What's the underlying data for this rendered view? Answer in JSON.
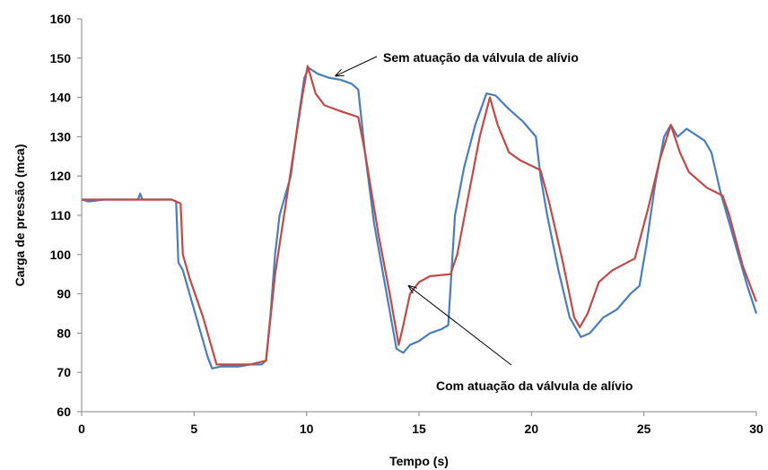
{
  "chart_data": {
    "type": "line",
    "xlabel": "Tempo (s)",
    "ylabel": "Carga de pressão (mca)",
    "xlim": [
      0,
      30
    ],
    "ylim": [
      60,
      160
    ],
    "xticks": [
      0,
      5,
      10,
      15,
      20,
      25,
      30
    ],
    "yticks": [
      60,
      70,
      80,
      90,
      100,
      110,
      120,
      130,
      140,
      150,
      160
    ],
    "grid": false,
    "series": [
      {
        "color": "#4a7ebb",
        "points": [
          [
            0,
            114
          ],
          [
            0.3,
            113.5
          ],
          [
            1,
            114
          ],
          [
            2,
            114
          ],
          [
            2.5,
            114
          ],
          [
            2.6,
            115.5
          ],
          [
            2.7,
            114
          ],
          [
            3,
            114
          ],
          [
            4,
            114
          ],
          [
            4.2,
            113.5
          ],
          [
            4.3,
            98
          ],
          [
            4.5,
            96
          ],
          [
            4.8,
            90
          ],
          [
            5.2,
            82
          ],
          [
            5.6,
            74
          ],
          [
            5.8,
            71
          ],
          [
            6.2,
            71.5
          ],
          [
            7,
            71.5
          ],
          [
            7.5,
            72
          ],
          [
            8,
            72
          ],
          [
            8.2,
            73
          ],
          [
            8.4,
            85
          ],
          [
            8.6,
            100
          ],
          [
            8.8,
            110
          ],
          [
            9,
            114
          ],
          [
            9.3,
            120
          ],
          [
            9.6,
            133
          ],
          [
            9.9,
            145
          ],
          [
            10.1,
            147.5
          ],
          [
            10.5,
            146
          ],
          [
            11,
            145
          ],
          [
            11.5,
            144.5
          ],
          [
            12,
            143.5
          ],
          [
            12.3,
            142
          ],
          [
            12.6,
            126
          ],
          [
            13,
            108
          ],
          [
            13.5,
            92
          ],
          [
            14,
            76
          ],
          [
            14.3,
            75
          ],
          [
            14.6,
            77
          ],
          [
            15,
            78
          ],
          [
            15.5,
            80
          ],
          [
            16,
            81
          ],
          [
            16.3,
            82
          ],
          [
            16.6,
            110
          ],
          [
            17,
            122
          ],
          [
            17.5,
            133
          ],
          [
            18,
            141
          ],
          [
            18.4,
            140.5
          ],
          [
            19,
            137
          ],
          [
            19.6,
            134
          ],
          [
            20.2,
            130
          ],
          [
            20.4,
            120
          ],
          [
            20.7,
            110
          ],
          [
            21.2,
            96
          ],
          [
            21.7,
            84
          ],
          [
            22.2,
            79
          ],
          [
            22.6,
            80
          ],
          [
            23.2,
            84
          ],
          [
            23.8,
            86
          ],
          [
            24.4,
            90
          ],
          [
            24.8,
            92
          ],
          [
            25.1,
            102
          ],
          [
            25.5,
            118
          ],
          [
            25.9,
            130
          ],
          [
            26.2,
            133
          ],
          [
            26.5,
            130
          ],
          [
            26.9,
            132
          ],
          [
            27.3,
            130.5
          ],
          [
            27.7,
            129
          ],
          [
            28,
            126
          ],
          [
            28.4,
            116
          ],
          [
            28.8,
            108
          ],
          [
            29.2,
            100
          ],
          [
            29.6,
            92
          ],
          [
            30,
            85
          ]
        ]
      },
      {
        "color": "#be4b48",
        "points": [
          [
            0,
            114
          ],
          [
            1,
            114
          ],
          [
            2,
            114
          ],
          [
            3,
            114
          ],
          [
            4,
            114
          ],
          [
            4.4,
            113
          ],
          [
            4.5,
            100
          ],
          [
            4.8,
            94
          ],
          [
            5.4,
            84
          ],
          [
            6,
            72
          ],
          [
            6.5,
            72
          ],
          [
            7.5,
            72
          ],
          [
            8.2,
            73
          ],
          [
            8.6,
            95
          ],
          [
            9,
            110
          ],
          [
            9.4,
            125
          ],
          [
            9.8,
            140
          ],
          [
            10.05,
            148
          ],
          [
            10.4,
            141
          ],
          [
            10.8,
            138
          ],
          [
            11.5,
            136.5
          ],
          [
            12.3,
            135
          ],
          [
            12.6,
            126
          ],
          [
            13.2,
            105
          ],
          [
            13.7,
            90
          ],
          [
            14.1,
            77
          ],
          [
            14.3,
            82
          ],
          [
            14.6,
            90
          ],
          [
            15,
            93
          ],
          [
            15.5,
            94.5
          ],
          [
            16.4,
            95
          ],
          [
            16.7,
            100
          ],
          [
            17.2,
            115
          ],
          [
            17.7,
            130
          ],
          [
            18.15,
            140
          ],
          [
            18.5,
            133
          ],
          [
            19,
            126
          ],
          [
            19.5,
            124
          ],
          [
            20.4,
            121.5
          ],
          [
            20.8,
            113
          ],
          [
            21.4,
            98
          ],
          [
            21.9,
            84
          ],
          [
            22.15,
            81.5
          ],
          [
            22.5,
            85
          ],
          [
            23,
            93
          ],
          [
            23.6,
            96
          ],
          [
            24.6,
            99
          ],
          [
            25.2,
            112
          ],
          [
            25.7,
            124
          ],
          [
            26.2,
            133
          ],
          [
            26.6,
            126
          ],
          [
            27,
            121
          ],
          [
            27.8,
            117
          ],
          [
            28.5,
            115
          ],
          [
            28.8,
            110
          ],
          [
            29.4,
            97
          ],
          [
            30,
            88
          ]
        ]
      }
    ],
    "annotations": [
      {
        "text": "Sem atuação da válvula de alívio",
        "target": [
          11.3,
          145.5
        ]
      },
      {
        "text": "Com atuação da válvula de alívio",
        "target": [
          14.55,
          92
        ]
      }
    ]
  }
}
